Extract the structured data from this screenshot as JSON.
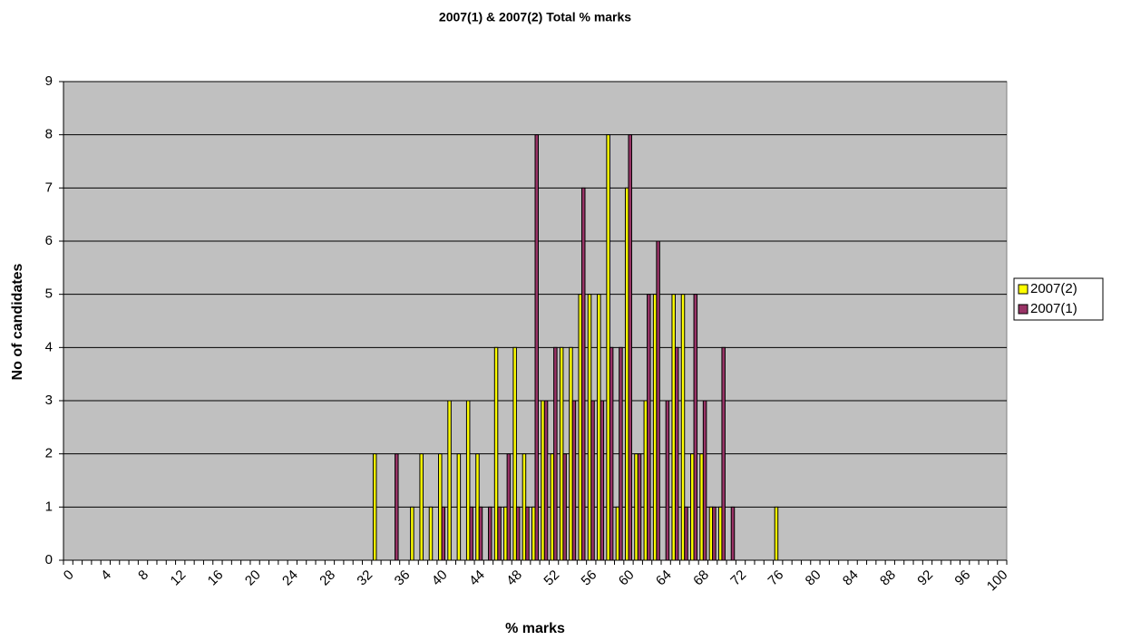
{
  "chart_data": {
    "type": "bar",
    "title": "2007(1) & 2007(2) Total % marks",
    "xlabel": "% marks",
    "ylabel": "No of candidates",
    "categories": [
      "0",
      null,
      null,
      null,
      "4",
      null,
      null,
      null,
      "8",
      null,
      null,
      null,
      "12",
      null,
      null,
      null,
      "16",
      null,
      null,
      null,
      "20",
      null,
      null,
      null,
      "24",
      null,
      null,
      null,
      "28",
      null,
      null,
      null,
      "32",
      null,
      null,
      null,
      "36",
      null,
      null,
      null,
      "40",
      null,
      null,
      null,
      "44",
      null,
      null,
      null,
      "48",
      null,
      null,
      null,
      "52",
      null,
      null,
      null,
      "56",
      null,
      null,
      null,
      "60",
      null,
      null,
      null,
      "64",
      null,
      null,
      null,
      "68",
      null,
      null,
      null,
      "72",
      null,
      null,
      null,
      "76",
      null,
      null,
      null,
      "80",
      null,
      null,
      null,
      "84",
      null,
      null,
      null,
      "88",
      null,
      null,
      null,
      "92",
      null,
      null,
      null,
      "96",
      null,
      null,
      null,
      "100"
    ],
    "series": [
      {
        "name": "2007(2)",
        "color": "#ffff00",
        "values": [
          0,
          0,
          0,
          0,
          0,
          0,
          0,
          0,
          0,
          0,
          0,
          0,
          0,
          0,
          0,
          0,
          0,
          0,
          0,
          0,
          0,
          0,
          0,
          0,
          0,
          0,
          0,
          0,
          0,
          0,
          0,
          0,
          0,
          2,
          0,
          0,
          0,
          1,
          2,
          1,
          2,
          3,
          2,
          3,
          2,
          0,
          4,
          1,
          4,
          2,
          1,
          3,
          2,
          4,
          4,
          5,
          5,
          5,
          8,
          1,
          7,
          2,
          3,
          5,
          0,
          5,
          5,
          2,
          2,
          1,
          1,
          0,
          0,
          0,
          0,
          0,
          1,
          0,
          0,
          0,
          0,
          0,
          0,
          0,
          0,
          0,
          0,
          0,
          0,
          0,
          0,
          0,
          0,
          0,
          0,
          0,
          0,
          0,
          0,
          0,
          0
        ]
      },
      {
        "name": "2007(1)",
        "color": "#993366",
        "values": [
          0,
          0,
          0,
          0,
          0,
          0,
          0,
          0,
          0,
          0,
          0,
          0,
          0,
          0,
          0,
          0,
          0,
          0,
          0,
          0,
          0,
          0,
          0,
          0,
          0,
          0,
          0,
          0,
          0,
          0,
          0,
          0,
          0,
          0,
          0,
          2,
          0,
          0,
          0,
          0,
          1,
          0,
          0,
          1,
          1,
          1,
          1,
          2,
          1,
          1,
          8,
          3,
          4,
          2,
          3,
          7,
          3,
          3,
          4,
          4,
          8,
          2,
          5,
          6,
          3,
          4,
          1,
          5,
          3,
          1,
          4,
          1,
          0,
          0,
          0,
          0,
          0,
          0,
          0,
          0,
          0,
          0,
          0,
          0,
          0,
          0,
          0,
          0,
          0,
          0,
          0,
          0,
          0,
          0,
          0,
          0,
          0,
          0,
          0,
          0,
          0
        ]
      }
    ],
    "ylim": [
      0,
      9
    ],
    "yticks": [
      0,
      1,
      2,
      3,
      4,
      5,
      6,
      7,
      8,
      9
    ],
    "grid": true,
    "legend": "right"
  }
}
